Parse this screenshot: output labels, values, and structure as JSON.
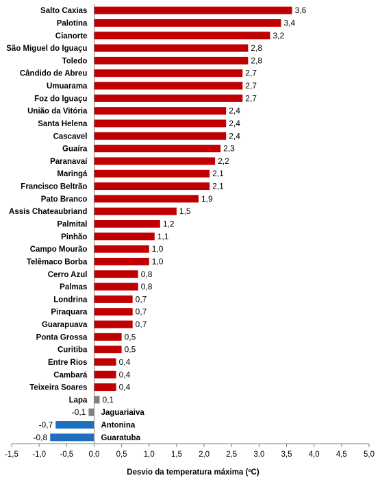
{
  "chart_data": {
    "type": "bar",
    "orientation": "horizontal",
    "title": "",
    "xlabel": "Desvio da temperatura máxima (ºC)",
    "ylabel": "",
    "xlim": [
      -1.5,
      5.0
    ],
    "xticks": [
      "-1,5",
      "-1,0",
      "-0,5",
      "0,0",
      "0,5",
      "1,0",
      "1,5",
      "2,0",
      "2,5",
      "3,0",
      "3,5",
      "4,0",
      "4,5",
      "5,0"
    ],
    "grid": false,
    "legend": "none",
    "colors": {
      "positive": "#c00000",
      "near_zero": "#7f7f7f",
      "negative": "#1f6fbf"
    },
    "categories": [
      "Salto Caxias",
      "Palotina",
      "Cianorte",
      "São Miguel do Iguaçu",
      "Toledo",
      "Cândido de Abreu",
      "Umuarama",
      "Foz do Iguaçu",
      "União da Vitória",
      "Santa Helena",
      "Cascavel",
      "Guaíra",
      "Paranavaí",
      "Maringá",
      "Francisco Beltrão",
      "Pato Branco",
      "Assis Chateaubriand",
      "Palmital",
      "Pinhão",
      "Campo Mourão",
      "Telêmaco Borba",
      "Cerro Azul",
      "Palmas",
      "Londrina",
      "Piraquara",
      "Guarapuava",
      "Ponta Grossa",
      "Curitiba",
      "Entre Rios",
      "Cambará",
      "Teixeira Soares",
      "Lapa",
      "Jaguariaiva",
      "Antonina",
      "Guaratuba"
    ],
    "values": [
      3.6,
      3.4,
      3.2,
      2.8,
      2.8,
      2.7,
      2.7,
      2.7,
      2.4,
      2.4,
      2.4,
      2.3,
      2.2,
      2.1,
      2.1,
      1.9,
      1.5,
      1.2,
      1.1,
      1.0,
      1.0,
      0.8,
      0.8,
      0.7,
      0.7,
      0.7,
      0.5,
      0.5,
      0.4,
      0.4,
      0.4,
      0.1,
      -0.1,
      -0.7,
      -0.8
    ],
    "value_labels": [
      "3,6",
      "3,4",
      "3,2",
      "2,8",
      "2,8",
      "2,7",
      "2,7",
      "2,7",
      "2,4",
      "2,4",
      "2,4",
      "2,3",
      "2,2",
      "2,1",
      "2,1",
      "1,9",
      "1,5",
      "1,2",
      "1,1",
      "1,0",
      "1,0",
      "0,8",
      "0,8",
      "0,7",
      "0,7",
      "0,7",
      "0,5",
      "0,5",
      "0,4",
      "0,4",
      "0,4",
      "0,1",
      "-0,1",
      "-0,7",
      "-0,8"
    ]
  }
}
